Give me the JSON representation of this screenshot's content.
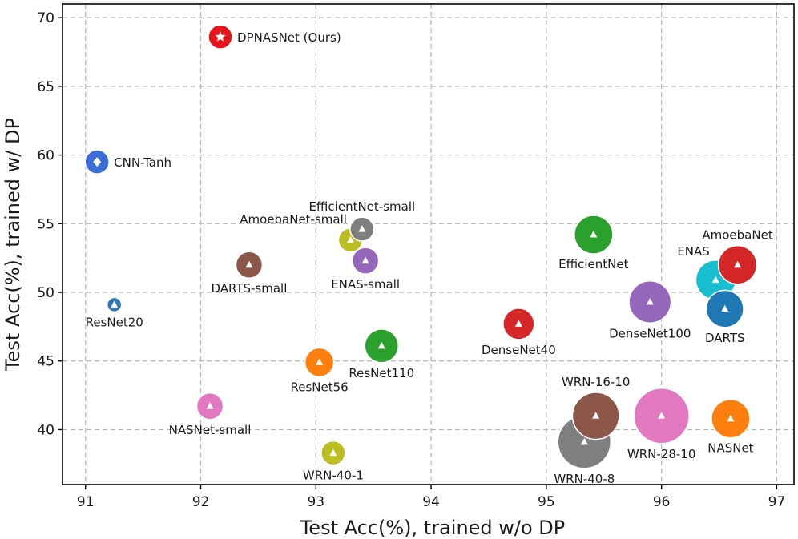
{
  "chart_data": {
    "type": "scatter",
    "xlabel": "Test Acc(%), trained w/o DP",
    "ylabel": "Test Acc(%), trained w/ DP",
    "xlim": [
      90.8,
      97.15
    ],
    "ylim": [
      36.0,
      71.0
    ],
    "xticks": [
      91,
      92,
      93,
      94,
      95,
      96,
      97
    ],
    "yticks": [
      40,
      45,
      50,
      55,
      60,
      65,
      70
    ],
    "grid": true,
    "points": [
      {
        "name": "DPNASNet (Ours)",
        "x": 92.17,
        "y": 68.6,
        "size": 1,
        "color": "#e8141c",
        "marker": "star",
        "label_pos": "right"
      },
      {
        "name": "CNN-Tanh",
        "x": 91.1,
        "y": 59.5,
        "size": 1,
        "color": "#3d6ed8",
        "marker": "diamond",
        "label_pos": "right"
      },
      {
        "name": "ResNet20",
        "x": 91.25,
        "y": 49.1,
        "size": 0.6,
        "color": "#2f77b4",
        "marker": "triangle",
        "label_pos": "below"
      },
      {
        "name": "DARTS-small",
        "x": 92.42,
        "y": 52.0,
        "size": 1.1,
        "color": "#8c564b",
        "marker": "triangle",
        "label_pos": "below"
      },
      {
        "name": "AmoebaNet-small",
        "x": 93.3,
        "y": 53.8,
        "size": 1.0,
        "color": "#bcbd22",
        "marker": "triangle",
        "label_pos": "above-left"
      },
      {
        "name": "EfficientNet-small",
        "x": 93.4,
        "y": 54.6,
        "size": 1.0,
        "color": "#7f7f7f",
        "marker": "triangle",
        "label_pos": "above"
      },
      {
        "name": "ENAS-small",
        "x": 93.43,
        "y": 52.3,
        "size": 1.1,
        "color": "#9467bd",
        "marker": "triangle",
        "label_pos": "below"
      },
      {
        "name": "ResNet56",
        "x": 93.03,
        "y": 44.9,
        "size": 1.2,
        "color": "#ff7f0e",
        "marker": "triangle",
        "label_pos": "below"
      },
      {
        "name": "ResNet110",
        "x": 93.57,
        "y": 46.1,
        "size": 1.4,
        "color": "#2ca02c",
        "marker": "triangle",
        "label_pos": "below"
      },
      {
        "name": "NASNet-small",
        "x": 92.08,
        "y": 41.7,
        "size": 1.1,
        "color": "#e377c2",
        "marker": "triangle",
        "label_pos": "below"
      },
      {
        "name": "WRN-40-1",
        "x": 93.15,
        "y": 38.3,
        "size": 1.0,
        "color": "#bcbd22",
        "marker": "triangle",
        "label_pos": "below"
      },
      {
        "name": "DenseNet40",
        "x": 94.76,
        "y": 47.7,
        "size": 1.3,
        "color": "#d62728",
        "marker": "triangle",
        "label_pos": "below"
      },
      {
        "name": "EfficientNet",
        "x": 95.41,
        "y": 54.2,
        "size": 1.6,
        "color": "#2ca02c",
        "marker": "triangle",
        "label_pos": "below"
      },
      {
        "name": "DenseNet100",
        "x": 95.9,
        "y": 49.3,
        "size": 1.75,
        "color": "#9467bd",
        "marker": "triangle",
        "label_pos": "below"
      },
      {
        "name": "ENAS",
        "x": 96.47,
        "y": 50.9,
        "size": 1.65,
        "color": "#17becf",
        "marker": "triangle",
        "label_pos": "above-left"
      },
      {
        "name": "AmoebaNet",
        "x": 96.66,
        "y": 52.0,
        "size": 1.6,
        "color": "#d62728",
        "marker": "triangle",
        "label_pos": "above"
      },
      {
        "name": "DARTS",
        "x": 96.55,
        "y": 48.8,
        "size": 1.55,
        "color": "#1f77b4",
        "marker": "triangle",
        "label_pos": "below"
      },
      {
        "name": "WRN-16-10",
        "x": 95.43,
        "y": 41.0,
        "size": 1.95,
        "color": "#8c564b",
        "marker": "triangle",
        "label_pos": "above"
      },
      {
        "name": "WRN-40-8",
        "x": 95.33,
        "y": 39.1,
        "size": 2.2,
        "color": "#7f7f7f",
        "marker": "triangle",
        "label_pos": "below"
      },
      {
        "name": "WRN-28-10",
        "x": 96.0,
        "y": 41.0,
        "size": 2.3,
        "color": "#e377c2",
        "marker": "triangle",
        "label_pos": "below"
      },
      {
        "name": "NASNet",
        "x": 96.6,
        "y": 40.8,
        "size": 1.6,
        "color": "#ff7f0e",
        "marker": "triangle",
        "label_pos": "below"
      }
    ]
  }
}
